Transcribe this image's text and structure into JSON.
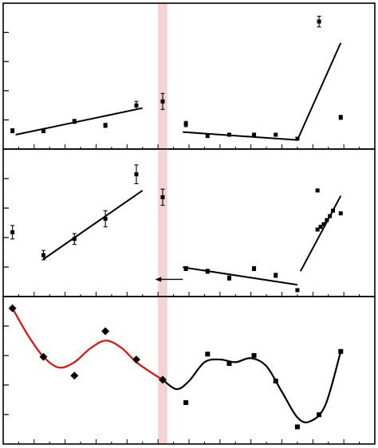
{
  "chart_data": [
    {
      "type": "scatter",
      "panel": "top",
      "xlim": [
        0,
        12
      ],
      "ylim": [
        0,
        10
      ],
      "grid": false,
      "legend": "none",
      "colors": {
        "marker": "#000000",
        "fit": "#000000",
        "band": "#f3d3d3"
      },
      "shaded_band_x": [
        5.0,
        5.3
      ],
      "points": [
        {
          "x": 0.3,
          "y": 0.9,
          "err": 0.15
        },
        {
          "x": 1.3,
          "y": 0.9,
          "err": 0.15
        },
        {
          "x": 2.3,
          "y": 1.6,
          "err": 0.15
        },
        {
          "x": 3.3,
          "y": 1.3,
          "err": 0.15
        },
        {
          "x": 4.3,
          "y": 2.8,
          "err": 0.3
        },
        {
          "x": 5.15,
          "y": 3.1,
          "err": 0.6
        },
        {
          "x": 5.9,
          "y": 1.4,
          "err": 0.2
        },
        {
          "x": 6.6,
          "y": 0.5,
          "err": 0.1
        },
        {
          "x": 7.3,
          "y": 0.6,
          "err": 0.1
        },
        {
          "x": 8.1,
          "y": 0.6,
          "err": 0.1
        },
        {
          "x": 8.8,
          "y": 0.6,
          "err": 0.1
        },
        {
          "x": 9.5,
          "y": 0.3,
          "err": 0.1
        },
        {
          "x": 10.2,
          "y": 9.1,
          "err": 0.4
        },
        {
          "x": 10.9,
          "y": 1.9,
          "err": 0.15
        }
      ],
      "fit_lines": [
        {
          "x": [
            0.4,
            4.5
          ],
          "y": [
            0.6,
            2.6
          ]
        },
        {
          "x": [
            5.8,
            9.5
          ],
          "y": [
            0.8,
            0.2
          ]
        },
        {
          "x": [
            9.5,
            10.9
          ],
          "y": [
            0.2,
            7.5
          ]
        }
      ]
    },
    {
      "type": "scatter",
      "panel": "middle",
      "xlim": [
        0,
        12
      ],
      "ylim": [
        0,
        10
      ],
      "grid": false,
      "legend": "none",
      "colors": {
        "marker": "#000000",
        "fit": "#000000",
        "band": "#f3d3d3"
      },
      "shaded_band_x": [
        5.0,
        5.3
      ],
      "points": [
        {
          "x": 0.3,
          "y": 4.3,
          "err": 0.5
        },
        {
          "x": 1.3,
          "y": 2.6,
          "err": 0.35
        },
        {
          "x": 2.3,
          "y": 3.8,
          "err": 0.4
        },
        {
          "x": 3.3,
          "y": 5.3,
          "err": 0.6
        },
        {
          "x": 4.3,
          "y": 8.6,
          "err": 0.7
        },
        {
          "x": 5.15,
          "y": 6.9,
          "err": 0.6
        },
        {
          "x": 5.9,
          "y": 1.6,
          "err": 0.15
        },
        {
          "x": 6.6,
          "y": 1.4,
          "err": 0.15
        },
        {
          "x": 7.3,
          "y": 0.9,
          "err": 0.15
        },
        {
          "x": 8.1,
          "y": 1.6,
          "err": 0.15
        },
        {
          "x": 8.8,
          "y": 1.1,
          "err": 0.15
        },
        {
          "x": 9.5,
          "y": 0.0,
          "err": 0.1
        },
        {
          "x": 10.15,
          "y": 4.5,
          "err": 0.1
        },
        {
          "x": 10.25,
          "y": 4.7,
          "err": 0.1
        },
        {
          "x": 10.35,
          "y": 4.9,
          "err": 0.1
        },
        {
          "x": 10.45,
          "y": 5.2,
          "err": 0.1
        },
        {
          "x": 10.55,
          "y": 5.5,
          "err": 0.1
        },
        {
          "x": 10.65,
          "y": 5.9,
          "err": 0.1
        },
        {
          "x": 10.15,
          "y": 7.4,
          "err": 0.1
        },
        {
          "x": 10.9,
          "y": 5.7,
          "err": 0.1
        }
      ],
      "fit_lines": [
        {
          "x": [
            1.3,
            4.5
          ],
          "y": [
            2.3,
            7.4
          ]
        },
        {
          "x": [
            5.8,
            9.5
          ],
          "y": [
            1.7,
            0.4
          ]
        },
        {
          "x": [
            9.6,
            10.9
          ],
          "y": [
            1.4,
            7.0
          ]
        }
      ],
      "arrow": {
        "x_from": 5.8,
        "x_to": 4.9,
        "y": 0.8
      }
    },
    {
      "type": "scatter",
      "panel": "bottom",
      "xlim": [
        0,
        12
      ],
      "ylim": [
        0,
        10
      ],
      "grid": false,
      "legend": "none",
      "colors": {
        "curve_left": "#e01010",
        "curve_right": "#000000",
        "marker": "#000000",
        "band": "#f3d3d3"
      },
      "shaded_band_x": [
        5.0,
        5.3
      ],
      "points": [
        {
          "x": 0.3,
          "y": 9.6,
          "marker": "diamond"
        },
        {
          "x": 1.3,
          "y": 6.0,
          "marker": "diamond"
        },
        {
          "x": 2.3,
          "y": 4.6,
          "marker": "diamond"
        },
        {
          "x": 3.3,
          "y": 7.9,
          "marker": "diamond"
        },
        {
          "x": 4.3,
          "y": 5.8,
          "marker": "diamond"
        },
        {
          "x": 5.15,
          "y": 4.3,
          "marker": "diamond"
        },
        {
          "x": 5.9,
          "y": 2.6,
          "marker": "square"
        },
        {
          "x": 6.6,
          "y": 6.2,
          "marker": "square"
        },
        {
          "x": 7.3,
          "y": 5.5,
          "marker": "square"
        },
        {
          "x": 8.1,
          "y": 6.1,
          "marker": "square"
        },
        {
          "x": 8.8,
          "y": 4.2,
          "marker": "square"
        },
        {
          "x": 9.5,
          "y": 0.8,
          "marker": "square"
        },
        {
          "x": 10.2,
          "y": 1.7,
          "marker": "square"
        },
        {
          "x": 10.9,
          "y": 6.4,
          "marker": "square"
        }
      ],
      "curves": [
        {
          "name": "",
          "color": "red",
          "x": [
            0.3,
            0.8,
            1.3,
            1.8,
            2.3,
            2.8,
            3.3,
            3.8,
            4.3,
            4.8,
            5.15
          ],
          "y": [
            9.6,
            7.6,
            6.0,
            5.2,
            5.6,
            6.6,
            7.2,
            6.7,
            5.6,
            4.8,
            4.3
          ]
        },
        {
          "name": "",
          "color": "black",
          "x": [
            5.15,
            5.6,
            6.0,
            6.5,
            7.0,
            7.5,
            8.0,
            8.5,
            9.0,
            9.5,
            9.9,
            10.4,
            10.9
          ],
          "y": [
            4.3,
            3.6,
            4.2,
            5.6,
            5.8,
            5.6,
            5.9,
            5.3,
            3.4,
            1.5,
            1.2,
            2.4,
            6.4
          ]
        }
      ]
    }
  ]
}
